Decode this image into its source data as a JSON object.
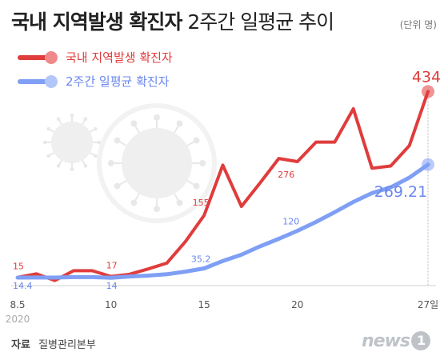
{
  "header": {
    "title_bold": "국내 지역발생 확진자",
    "title_rest": "2주간 일평균 추이",
    "unit": "(단위 명)"
  },
  "chart_data": {
    "type": "line",
    "x": [
      "8.5",
      "8.6",
      "8.7",
      "8.8",
      "8.9",
      "8.10",
      "8.11",
      "8.12",
      "8.13",
      "8.14",
      "8.15",
      "8.16",
      "8.17",
      "8.18",
      "8.19",
      "8.20",
      "8.21",
      "8.22",
      "8.23",
      "8.24",
      "8.25",
      "8.26",
      "8.27"
    ],
    "xtick_labels": [
      {
        "index": 0,
        "label": "8.5"
      },
      {
        "index": 5,
        "label": "10"
      },
      {
        "index": 10,
        "label": "15"
      },
      {
        "index": 15,
        "label": "20"
      },
      {
        "index": 22,
        "label": "27일"
      }
    ],
    "year_label": "2020",
    "ylim": [
      0,
      460
    ],
    "series": [
      {
        "name": "국내 지역발생 확진자",
        "color": "#e03c3c",
        "values": [
          15,
          23,
          8,
          30,
          30,
          17,
          22,
          34,
          47,
          96,
          155,
          268,
          175,
          228,
          283,
          276,
          320,
          320,
          395,
          261,
          266,
          312,
          434
        ],
        "labels": [
          {
            "index": 0,
            "text": "15"
          },
          {
            "index": 5,
            "text": "17"
          },
          {
            "index": 10,
            "text": "155"
          },
          {
            "index": 15,
            "text": "276"
          },
          {
            "index": 22,
            "text": "434"
          }
        ]
      },
      {
        "name": "2주간 일평균 확진자",
        "color": "#7f9ff5",
        "values": [
          14.4,
          14.6,
          14.5,
          15.5,
          15.5,
          14,
          17,
          19,
          22,
          28,
          35.2,
          52,
          66,
          85,
          102,
          120,
          140,
          162,
          185,
          205,
          218,
          240,
          269.21
        ],
        "labels": [
          {
            "index": 0,
            "text": "14.4"
          },
          {
            "index": 5,
            "text": "14"
          },
          {
            "index": 10,
            "text": "35.2"
          },
          {
            "index": 15,
            "text": "120"
          },
          {
            "index": 22,
            "text": "269.21"
          }
        ]
      }
    ]
  },
  "footer": {
    "source_label": "자료",
    "source_value": "질병관리본부",
    "logo_text": "news",
    "logo_num": "1"
  }
}
